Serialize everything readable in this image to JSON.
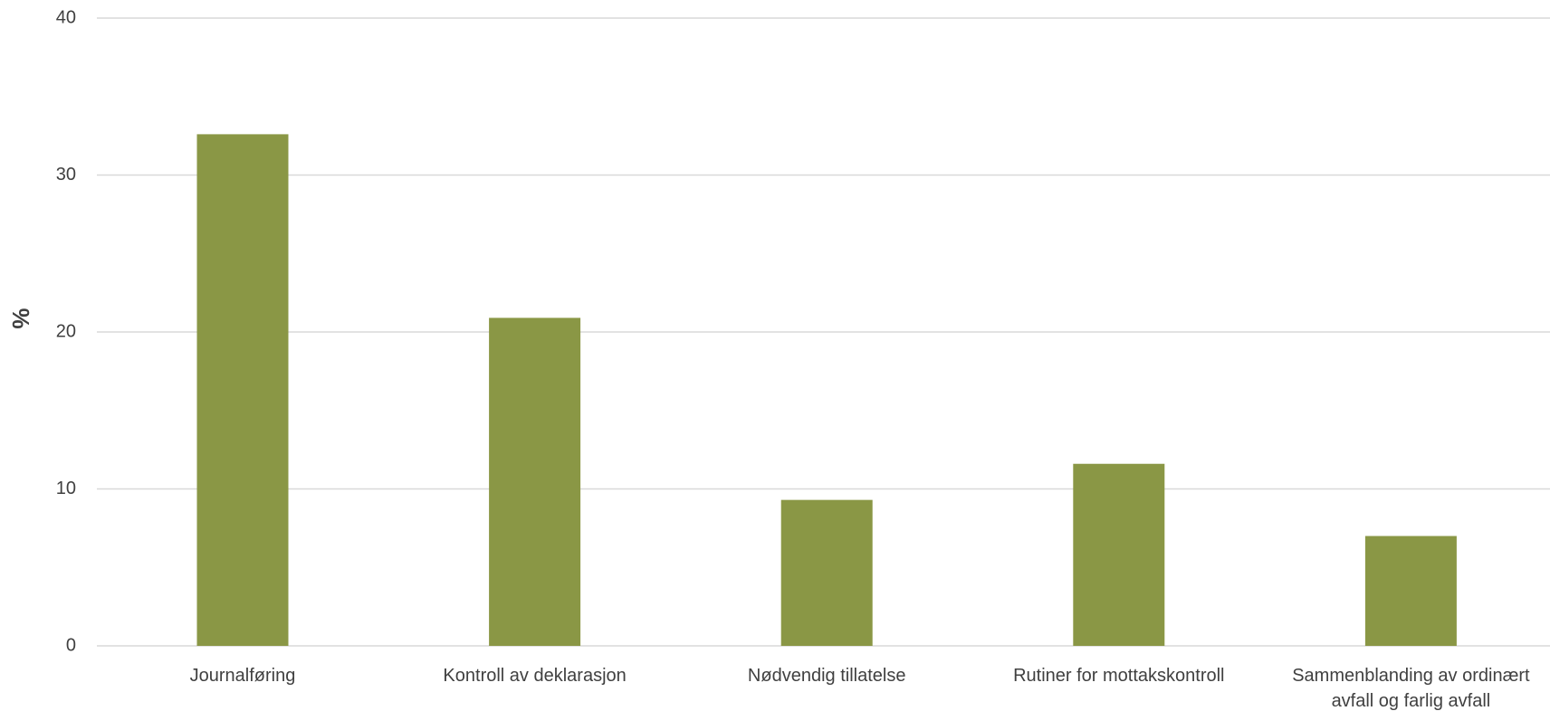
{
  "chart_data": {
    "type": "bar",
    "title": "",
    "xlabel": "",
    "ylabel": "%",
    "ylim": [
      0,
      40
    ],
    "yticks": [
      0,
      10,
      20,
      30,
      40
    ],
    "grid": true,
    "legend": "none",
    "bar_color": "#8a9745",
    "categories": [
      [
        "Journalføring"
      ],
      [
        "Kontroll av deklarasjon"
      ],
      [
        "Nødvendig tillatelse"
      ],
      [
        "Rutiner for mottakskontroll"
      ],
      [
        "Sammenblanding av ordinært",
        "avfall og farlig avfall"
      ]
    ],
    "values": [
      32.6,
      20.9,
      9.3,
      11.6,
      7.0
    ]
  }
}
